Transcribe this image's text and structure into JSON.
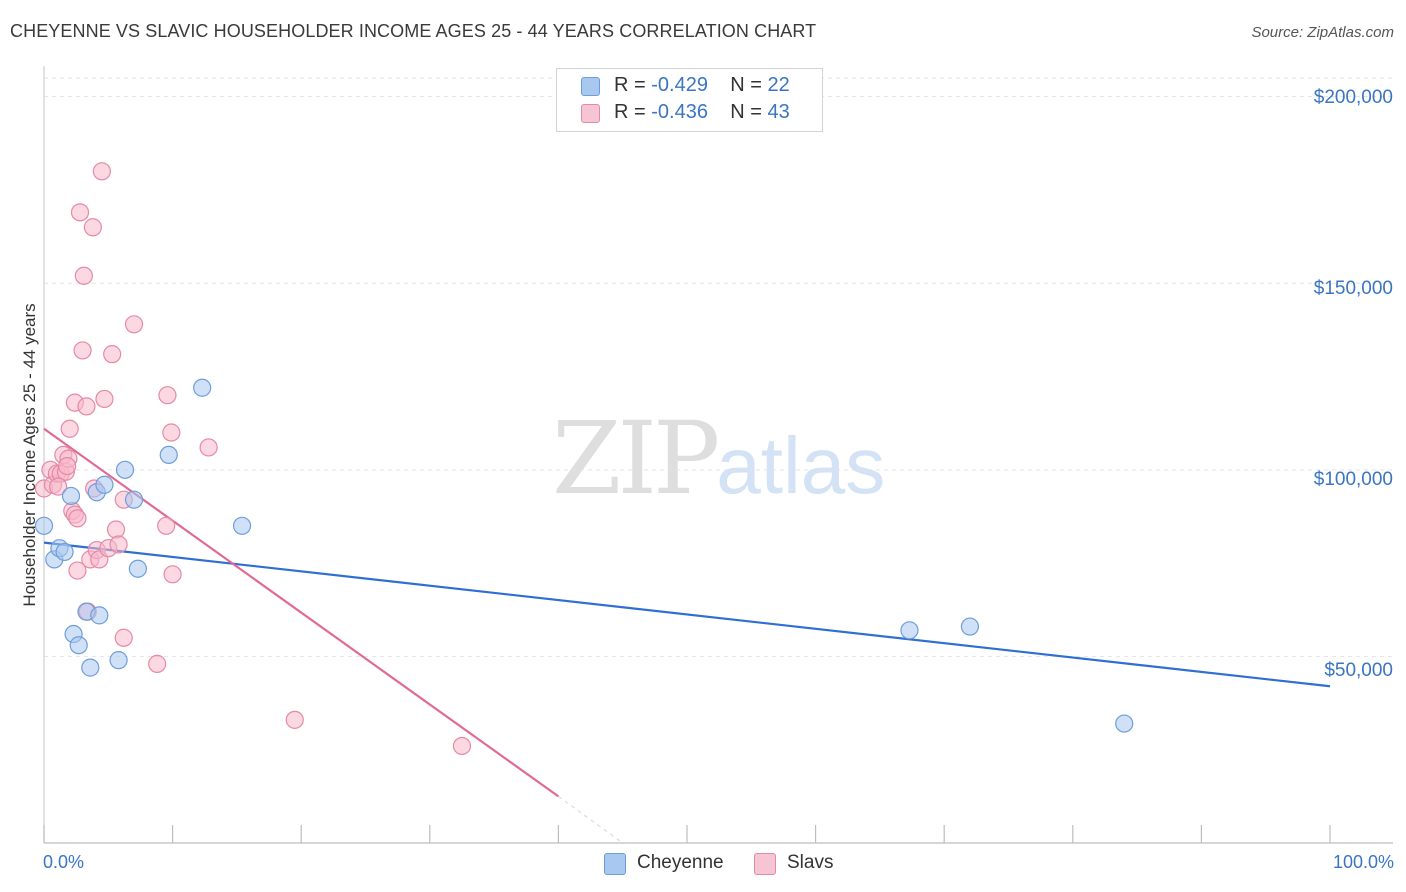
{
  "header": {
    "title": "CHEYENNE VS SLAVIC HOUSEHOLDER INCOME AGES 25 - 44 YEARS CORRELATION CHART",
    "source": "Source: ZipAtlas.com"
  },
  "watermark": {
    "zip": "ZIP",
    "atlas": "atlas"
  },
  "legend": {
    "rows": [
      {
        "r_label": "R =",
        "r_value": "-0.429",
        "n_label": "N =",
        "n_value": "22"
      },
      {
        "r_label": "R =",
        "r_value": "-0.436",
        "n_label": "N =",
        "n_value": "43"
      }
    ]
  },
  "bottom_legend": {
    "series1": "Cheyenne",
    "series2": "Slavs"
  },
  "colors": {
    "cheyenne_fill": "#a9c8f0",
    "cheyenne_stroke": "#6e9ed9",
    "cheyenne_line": "#2f6fd1",
    "slavs_fill": "#f7b8cb",
    "slavs_stroke": "#e58aa6",
    "slavs_line": "#e06a93",
    "tick_text": "#3a75c4",
    "grid": "#e3e3e3"
  },
  "chart_data": {
    "type": "scatter",
    "title": "CHEYENNE VS SLAVIC HOUSEHOLDER INCOME AGES 25 - 44 YEARS CORRELATION CHART",
    "xlabel": "",
    "ylabel": "Householder Income Ages 25 - 44 years",
    "xlim": [
      0,
      100
    ],
    "ylim": [
      0,
      205000
    ],
    "x_tick_labels": [
      "0.0%",
      "100.0%"
    ],
    "y_ticks": [
      50000,
      100000,
      150000,
      200000
    ],
    "y_tick_labels": [
      "$50,000",
      "$100,000",
      "$150,000",
      "$200,000"
    ],
    "grid": true,
    "series": [
      {
        "name": "Cheyenne",
        "r": -0.429,
        "n": 22,
        "points": [
          {
            "x": 0.0,
            "y": 85000
          },
          {
            "x": 0.8,
            "y": 76000
          },
          {
            "x": 1.2,
            "y": 79000
          },
          {
            "x": 1.6,
            "y": 78000
          },
          {
            "x": 2.1,
            "y": 93000
          },
          {
            "x": 2.3,
            "y": 56000
          },
          {
            "x": 2.7,
            "y": 53000
          },
          {
            "x": 3.3,
            "y": 62000
          },
          {
            "x": 3.6,
            "y": 47000
          },
          {
            "x": 4.1,
            "y": 94000
          },
          {
            "x": 4.3,
            "y": 61000
          },
          {
            "x": 4.7,
            "y": 96000
          },
          {
            "x": 5.8,
            "y": 49000
          },
          {
            "x": 6.3,
            "y": 100000
          },
          {
            "x": 7.0,
            "y": 92000
          },
          {
            "x": 7.3,
            "y": 73500
          },
          {
            "x": 9.7,
            "y": 104000
          },
          {
            "x": 12.3,
            "y": 122000
          },
          {
            "x": 15.4,
            "y": 85000
          },
          {
            "x": 67.3,
            "y": 57000
          },
          {
            "x": 72.0,
            "y": 58000
          },
          {
            "x": 84.0,
            "y": 32000
          }
        ],
        "trend": {
          "x0": 0,
          "y0": 80500,
          "x1": 100,
          "y1": 42000
        }
      },
      {
        "name": "Slavs",
        "r": -0.436,
        "n": 43,
        "points": [
          {
            "x": 0.0,
            "y": 95000
          },
          {
            "x": 0.5,
            "y": 100000
          },
          {
            "x": 0.7,
            "y": 96000
          },
          {
            "x": 1.0,
            "y": 99000
          },
          {
            "x": 1.3,
            "y": 99000
          },
          {
            "x": 1.5,
            "y": 104000
          },
          {
            "x": 1.7,
            "y": 99500
          },
          {
            "x": 1.9,
            "y": 103000
          },
          {
            "x": 2.0,
            "y": 111000
          },
          {
            "x": 2.2,
            "y": 89000
          },
          {
            "x": 2.4,
            "y": 88000
          },
          {
            "x": 2.6,
            "y": 87000
          },
          {
            "x": 2.4,
            "y": 118000
          },
          {
            "x": 2.6,
            "y": 73000
          },
          {
            "x": 2.8,
            "y": 169000
          },
          {
            "x": 3.0,
            "y": 132000
          },
          {
            "x": 3.1,
            "y": 152000
          },
          {
            "x": 3.3,
            "y": 117000
          },
          {
            "x": 3.4,
            "y": 62000
          },
          {
            "x": 3.6,
            "y": 76000
          },
          {
            "x": 3.8,
            "y": 165000
          },
          {
            "x": 3.9,
            "y": 95000
          },
          {
            "x": 4.1,
            "y": 78500
          },
          {
            "x": 4.3,
            "y": 76000
          },
          {
            "x": 4.5,
            "y": 180000
          },
          {
            "x": 4.7,
            "y": 119000
          },
          {
            "x": 5.0,
            "y": 79000
          },
          {
            "x": 5.3,
            "y": 131000
          },
          {
            "x": 5.6,
            "y": 84000
          },
          {
            "x": 5.8,
            "y": 80000
          },
          {
            "x": 6.2,
            "y": 55000
          },
          {
            "x": 6.2,
            "y": 92000
          },
          {
            "x": 7.0,
            "y": 139000
          },
          {
            "x": 8.8,
            "y": 48000
          },
          {
            "x": 9.5,
            "y": 85000
          },
          {
            "x": 9.6,
            "y": 120000
          },
          {
            "x": 9.9,
            "y": 110000
          },
          {
            "x": 10.0,
            "y": 72000
          },
          {
            "x": 12.8,
            "y": 106000
          },
          {
            "x": 19.5,
            "y": 33000
          },
          {
            "x": 32.5,
            "y": 26000
          },
          {
            "x": 1.1,
            "y": 95500
          },
          {
            "x": 1.8,
            "y": 101000
          }
        ],
        "trend": {
          "x0": 0,
          "y0": 111000,
          "x1": 40,
          "y1": 12500,
          "dash_to_x": 45,
          "dash_to_y": 0
        }
      }
    ]
  }
}
